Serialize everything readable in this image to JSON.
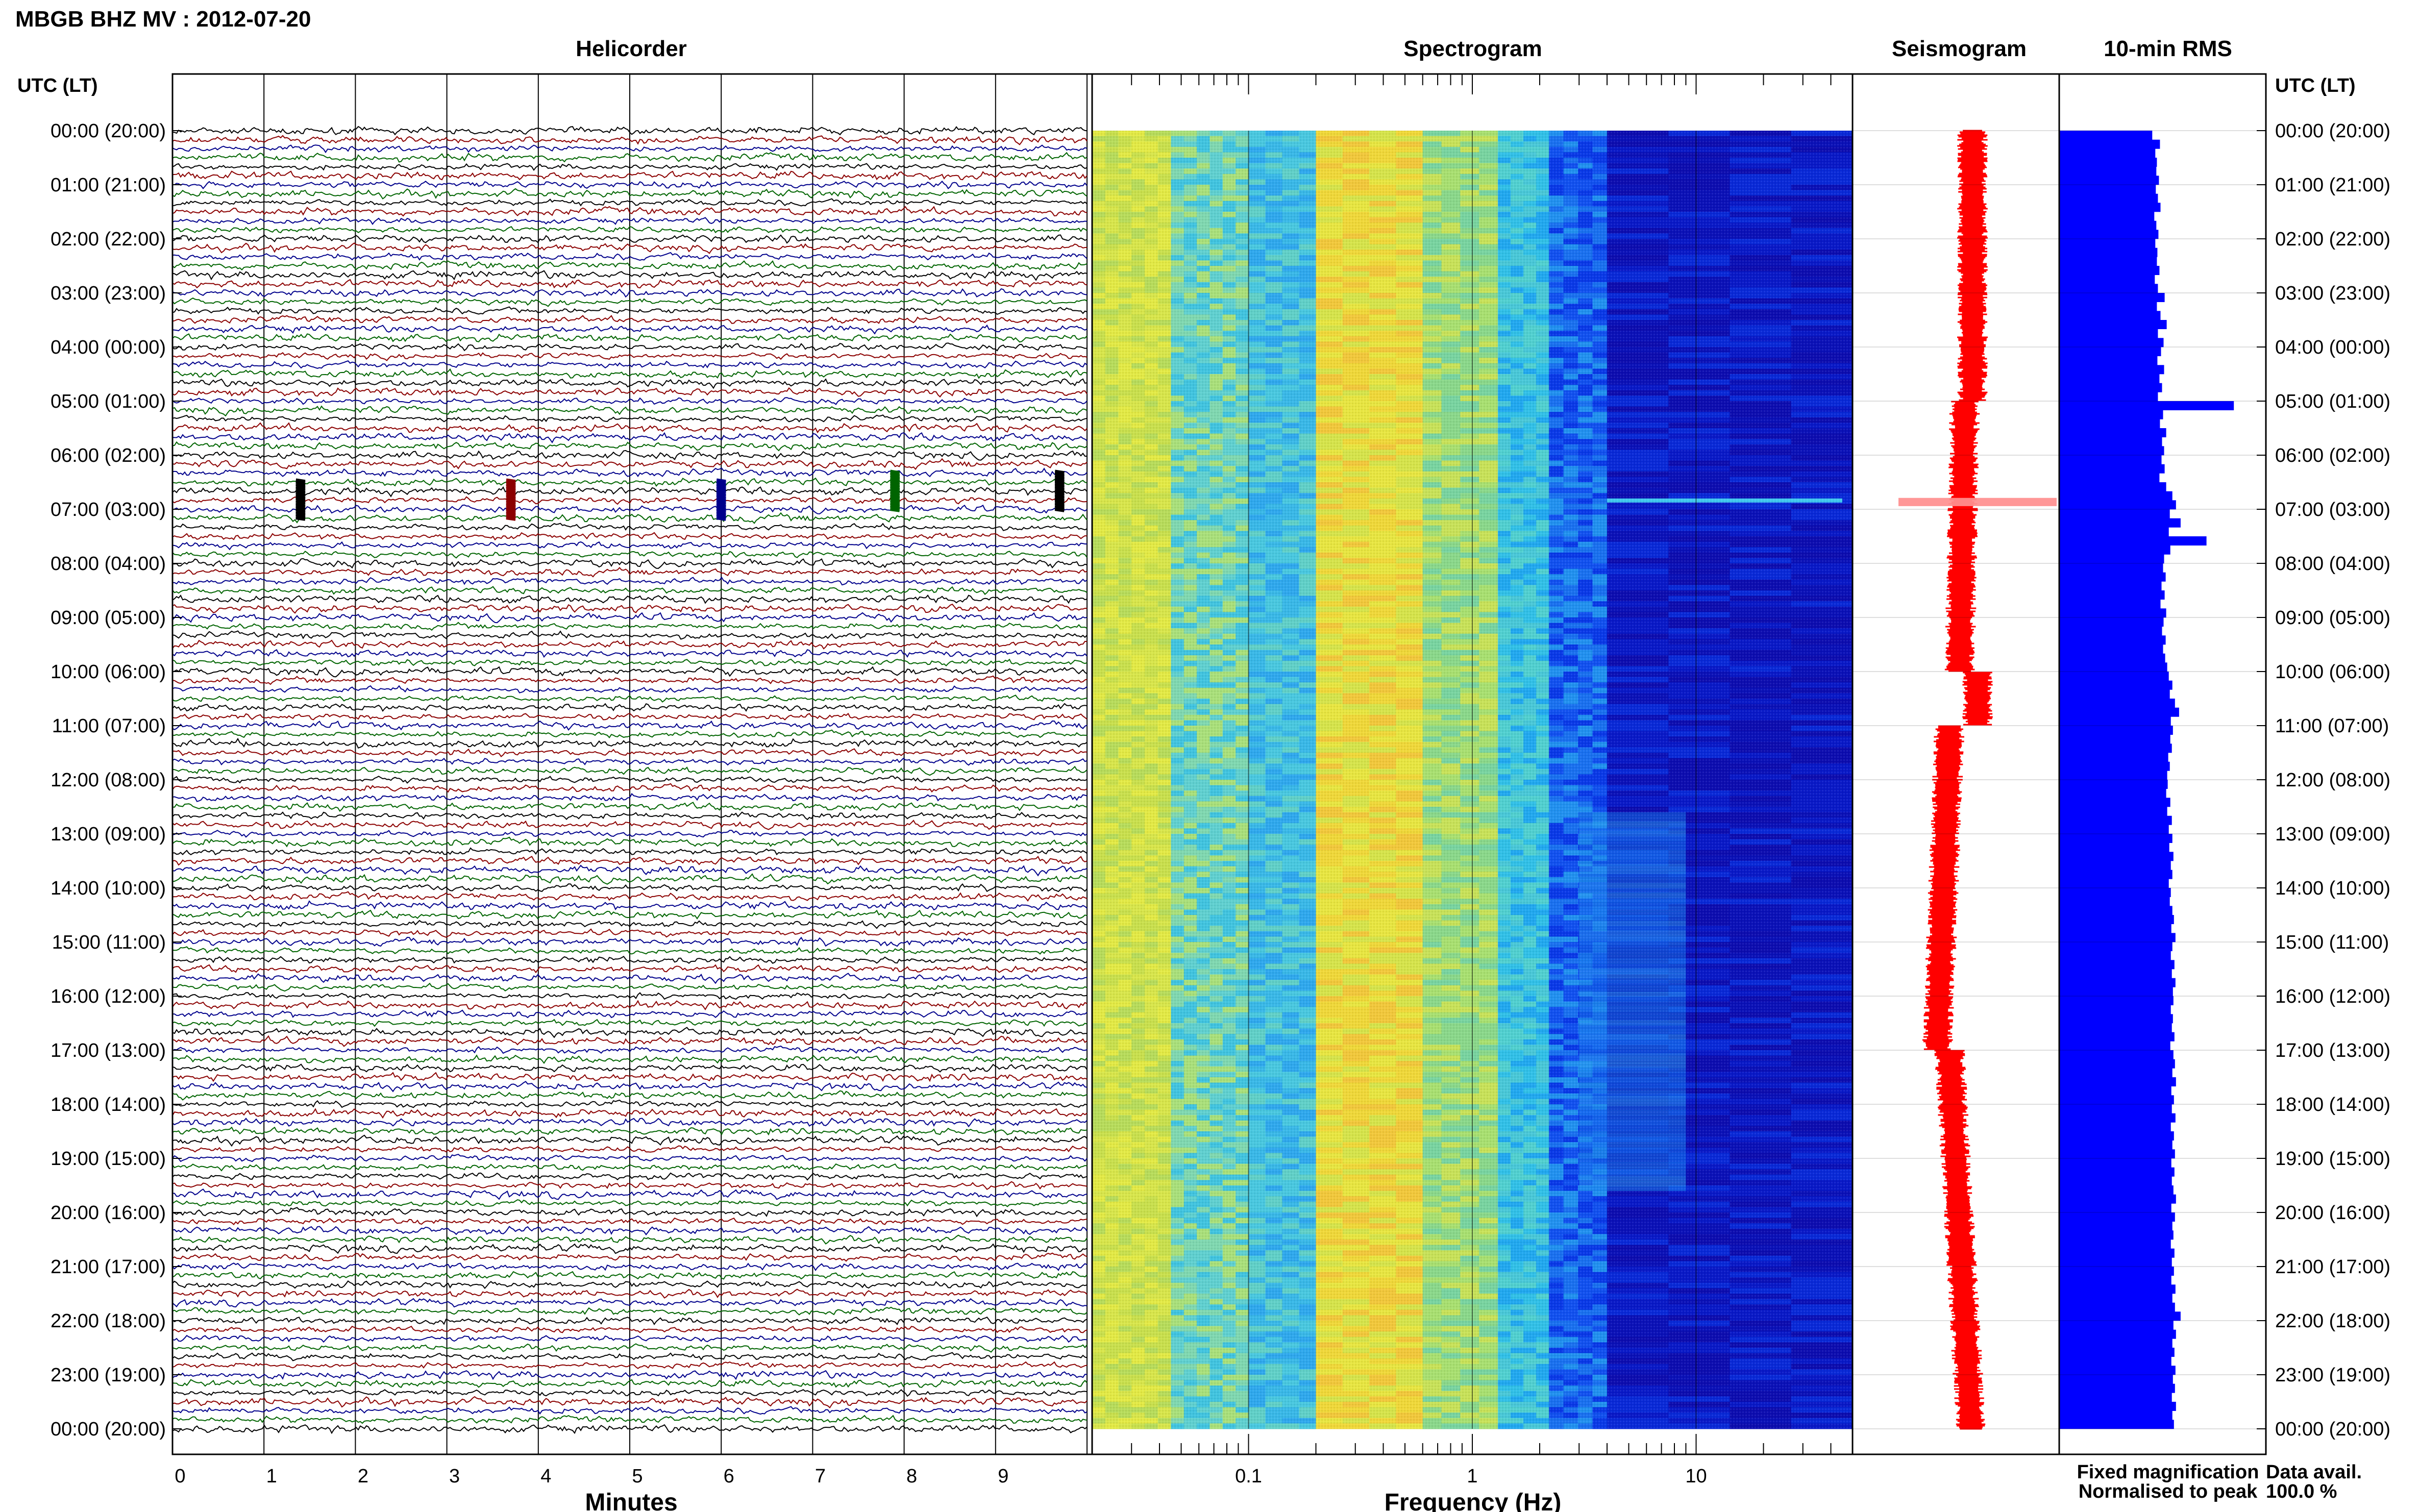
{
  "header": {
    "station_title": "MBGB BHZ MV : 2012-07-20",
    "panel_helicorder": "Helicorder",
    "panel_spectrogram": "Spectrogram",
    "panel_seismogram": "Seismogram",
    "panel_rms": "10-min RMS",
    "time_axis_label_left": "UTC (LT)",
    "time_axis_label_right": "UTC (LT)"
  },
  "footer": {
    "minutes_label": "Minutes",
    "frequency_label": "Frequency (Hz)",
    "legend_fixed": "Fixed magnification",
    "legend_normalised": "Normalised to peak",
    "data_avail_label": "Data avail.",
    "data_avail_value": "100.0 %"
  },
  "colors": {
    "legend_fixed": "#0000ff",
    "legend_normalised": "#ff0000",
    "rms_bar": "#0000ff",
    "seismogram": "#ff0000",
    "trace_palette": [
      "#000000",
      "#8b0000",
      "#00008b",
      "#006400"
    ]
  },
  "chart_data": [
    {
      "type": "line",
      "panel": "helicorder",
      "xlabel": "Minutes",
      "xticks": [
        "0",
        "1",
        "2",
        "3",
        "4",
        "5",
        "6",
        "7",
        "8",
        "9"
      ],
      "xlim": [
        0,
        10
      ],
      "ytick_labels": [
        "00:00 (20:00)",
        "01:00 (21:00)",
        "02:00 (22:00)",
        "03:00 (23:00)",
        "04:00 (00:00)",
        "05:00 (01:00)",
        "06:00 (02:00)",
        "07:00 (03:00)",
        "08:00 (04:00)",
        "09:00 (05:00)",
        "10:00 (06:00)",
        "11:00 (07:00)",
        "12:00 (08:00)",
        "13:00 (09:00)",
        "14:00 (10:00)",
        "15:00 (11:00)",
        "16:00 (12:00)",
        "17:00 (13:00)",
        "18:00 (14:00)",
        "19:00 (15:00)",
        "20:00 (16:00)",
        "21:00 (17:00)",
        "22:00 (18:00)",
        "23:00 (19:00)",
        "00:00 (20:00)"
      ],
      "traces_per_hour": 6,
      "events_minutes": [
        {
          "hour": 6.83,
          "minute": 1.4
        },
        {
          "hour": 6.83,
          "minute": 3.7
        },
        {
          "hour": 6.83,
          "minute": 6.0
        },
        {
          "hour": 6.67,
          "minute": 7.9
        },
        {
          "hour": 6.67,
          "minute": 9.7
        }
      ]
    },
    {
      "type": "heatmap",
      "panel": "spectrogram",
      "xlabel": "Frequency (Hz)",
      "xscale": "log",
      "xlim": [
        0.02,
        50
      ],
      "xticks": [
        "0.1",
        "1",
        "10"
      ],
      "xtick_values": [
        0.1,
        1,
        10
      ]
    },
    {
      "type": "line",
      "panel": "seismogram",
      "title": "Seismogram"
    },
    {
      "type": "bar",
      "panel": "rms",
      "title": "10-min RMS",
      "orientation": "horizontal",
      "values": [
        18.0,
        19.5,
        18.6,
        18.9,
        18.8,
        19.3,
        18.7,
        19.1,
        19.6,
        18.4,
        18.8,
        19.2,
        18.6,
        19.0,
        18.9,
        19.4,
        18.5,
        19.1,
        20.4,
        18.9,
        19.6,
        20.8,
        19.1,
        20.2,
        19.7,
        19.0,
        20.3,
        19.4,
        19.9,
        19.1,
        33.8,
        20.1,
        19.5,
        20.7,
        19.9,
        20.3,
        19.8,
        20.4,
        19.4,
        20.7,
        21.9,
        22.6,
        21.4,
        23.5,
        21.2,
        28.5,
        21.5,
        20.3,
        20.1,
        20.6,
        19.8,
        20.4,
        19.6,
        20.7,
        20.2,
        19.9,
        20.6,
        20.1,
        20.5,
        20.9,
        21.2,
        21.9,
        21.4,
        22.4,
        23.2,
        21.6,
        22.0,
        21.5,
        21.8,
        21.1,
        21.4,
        20.9,
        21.0,
        20.7,
        21.5,
        20.9,
        21.8,
        21.2,
        21.9,
        21.3,
        22.1,
        21.6,
        21.9,
        21.2,
        21.6,
        21.4,
        21.9,
        22.2,
        21.7,
        22.5,
        21.9,
        21.6,
        22.3,
        21.8,
        22.5,
        22.0,
        22.1,
        21.6,
        22.0,
        21.8,
        22.3,
        21.5,
        22.1,
        22.4,
        21.9,
        22.6,
        21.7,
        22.2,
        21.8,
        22.5,
        21.6,
        22.2,
        21.9,
        22.4,
        21.7,
        22.3,
        21.8,
        22.1,
        22.6,
        21.7,
        22.4,
        21.9,
        22.1,
        21.6,
        22.3,
        21.8,
        22.2,
        21.7,
        22.5,
        21.9,
        22.4,
        23.5,
        22.1,
        22.6,
        21.9,
        22.3,
        21.7,
        22.5,
        22.0,
        22.4,
        21.8,
        22.6,
        21.9,
        22.2
      ]
    }
  ]
}
